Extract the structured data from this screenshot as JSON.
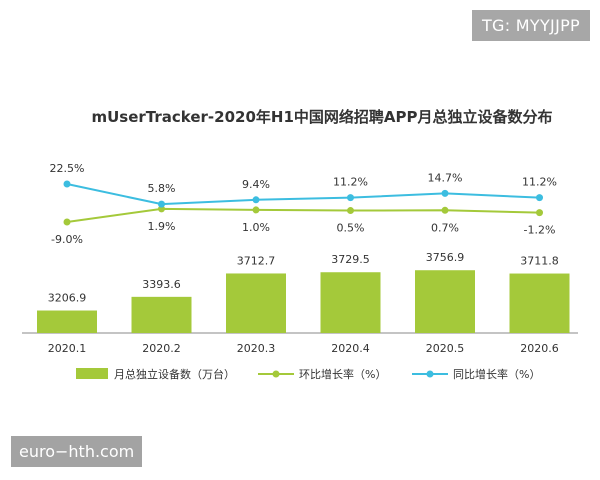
{
  "tag": "TG: MYYJJPP",
  "watermark": "euro−hth.com",
  "chart_data": {
    "type": "bar",
    "title": "mUserTracker-2020年H1中国网络招聘APP月总独立设备数分布",
    "categories": [
      "2020.1",
      "2020.2",
      "2020.3",
      "2020.4",
      "2020.5",
      "2020.6"
    ],
    "series": [
      {
        "name": "月总独立设备数（万台）",
        "type": "bar",
        "values": [
          3206.9,
          3393.6,
          3712.7,
          3729.5,
          3756.9,
          3711.8
        ],
        "labels": [
          "3206.9",
          "3393.6",
          "3712.7",
          "3729.5",
          "3756.9",
          "3711.8"
        ],
        "color": "#a4c93a"
      },
      {
        "name": "环比增长率（%）",
        "type": "line",
        "values": [
          -9.0,
          1.9,
          1.0,
          0.5,
          0.7,
          -1.2
        ],
        "labels": [
          "-9.0%",
          "1.9%",
          "1.0%",
          "0.5%",
          "0.7%",
          "-1.2%"
        ],
        "color": "#a4c93a"
      },
      {
        "name": "同比增长率（%）",
        "type": "line",
        "values": [
          22.5,
          5.8,
          9.4,
          11.2,
          14.7,
          11.2
        ],
        "labels": [
          "22.5%",
          "5.8%",
          "9.4%",
          "11.2%",
          "14.7%",
          "11.2%"
        ],
        "color": "#3cbde0"
      }
    ],
    "legend_position": "bottom"
  }
}
